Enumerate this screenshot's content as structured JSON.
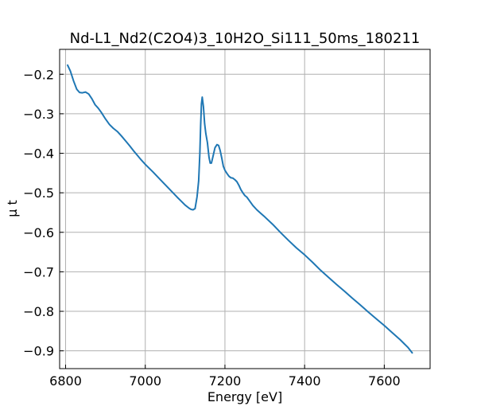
{
  "chart_data": {
    "type": "line",
    "title": "Nd-L1_Nd2(C2O4)3_10H2O_Si111_50ms_180211",
    "xlabel": "Energy [eV]",
    "ylabel": "μ t",
    "xlim": [
      6785,
      7715
    ],
    "ylim": [
      -0.945,
      -0.137
    ],
    "xticks": [
      6800,
      7000,
      7200,
      7400,
      7600
    ],
    "yticks": [
      -0.2,
      -0.3,
      -0.4,
      -0.5,
      -0.6,
      -0.7,
      -0.8,
      -0.9
    ],
    "grid": true,
    "series": [
      {
        "color": "#1f77b4",
        "x": [
          6805,
          6812,
          6820,
          6828,
          6835,
          6842,
          6850,
          6858,
          6866,
          6874,
          6882,
          6890,
          6900,
          6910,
          6920,
          6930,
          6940,
          6950,
          6960,
          6970,
          6980,
          6990,
          7000,
          7020,
          7040,
          7060,
          7080,
          7090,
          7100,
          7110,
          7115,
          7120,
          7125,
          7130,
          7134,
          7137,
          7139,
          7141,
          7143,
          7146,
          7149,
          7152,
          7156,
          7160,
          7163,
          7166,
          7170,
          7175,
          7180,
          7184,
          7188,
          7192,
          7196,
          7200,
          7205,
          7210,
          7215,
          7220,
          7225,
          7230,
          7235,
          7240,
          7245,
          7250,
          7255,
          7260,
          7270,
          7280,
          7290,
          7300,
          7320,
          7340,
          7360,
          7380,
          7400,
          7420,
          7440,
          7460,
          7480,
          7500,
          7520,
          7540,
          7560,
          7580,
          7600,
          7620,
          7640,
          7650,
          7660,
          7670
        ],
        "y": [
          -0.177,
          -0.192,
          -0.217,
          -0.238,
          -0.246,
          -0.247,
          -0.245,
          -0.25,
          -0.262,
          -0.277,
          -0.286,
          -0.297,
          -0.313,
          -0.327,
          -0.337,
          -0.345,
          -0.356,
          -0.368,
          -0.38,
          -0.393,
          -0.405,
          -0.417,
          -0.428,
          -0.448,
          -0.469,
          -0.49,
          -0.511,
          -0.521,
          -0.531,
          -0.539,
          -0.542,
          -0.543,
          -0.54,
          -0.51,
          -0.47,
          -0.4,
          -0.33,
          -0.275,
          -0.258,
          -0.282,
          -0.325,
          -0.35,
          -0.373,
          -0.41,
          -0.425,
          -0.425,
          -0.408,
          -0.386,
          -0.378,
          -0.38,
          -0.393,
          -0.412,
          -0.433,
          -0.443,
          -0.451,
          -0.458,
          -0.462,
          -0.463,
          -0.467,
          -0.472,
          -0.481,
          -0.492,
          -0.5,
          -0.507,
          -0.511,
          -0.518,
          -0.532,
          -0.543,
          -0.552,
          -0.561,
          -0.58,
          -0.601,
          -0.621,
          -0.64,
          -0.657,
          -0.676,
          -0.696,
          -0.714,
          -0.732,
          -0.749,
          -0.767,
          -0.784,
          -0.802,
          -0.819,
          -0.836,
          -0.854,
          -0.872,
          -0.882,
          -0.892,
          -0.905
        ]
      }
    ]
  }
}
